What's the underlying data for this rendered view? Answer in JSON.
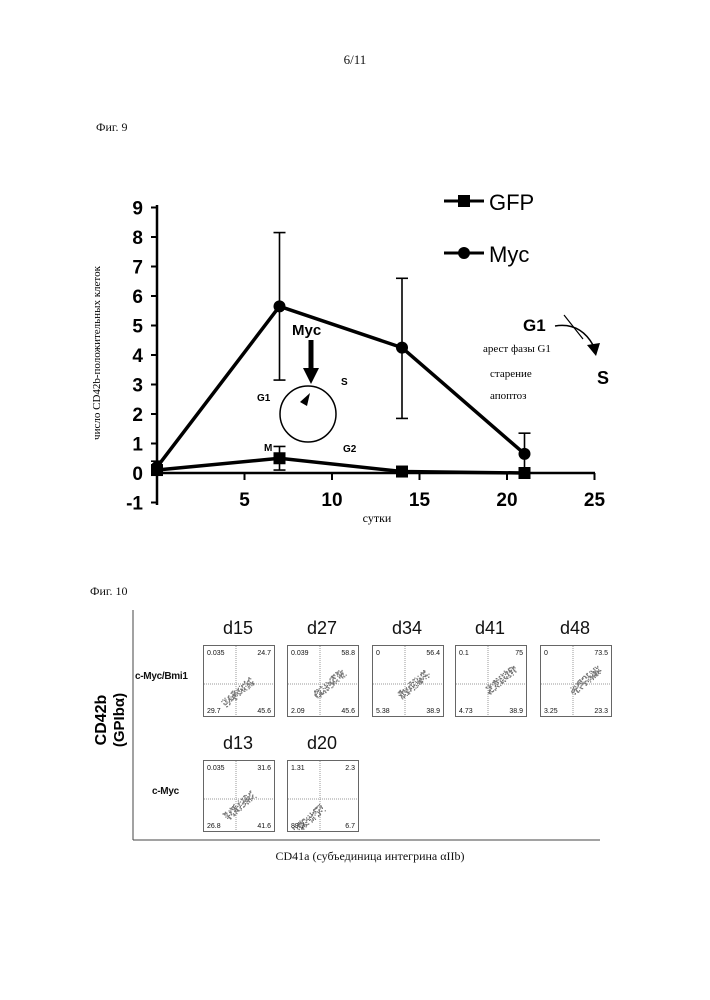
{
  "page_number": "6/11",
  "fig9": {
    "label": "Фиг. 9",
    "ylabel": "число CD42b-положительных клеток",
    "xlabel": "сутки",
    "y_ticks": [
      "9",
      "8",
      "7",
      "6",
      "5",
      "4",
      "3",
      "2",
      "1",
      "0",
      "-1"
    ],
    "x_ticks": [
      "5",
      "10",
      "15",
      "20",
      "25"
    ],
    "legend": {
      "gfp": "GFP",
      "myc": "Myc"
    },
    "cycle": {
      "myc": "Myc",
      "g1": "G1",
      "s": "S",
      "m": "M",
      "g2": "G2"
    },
    "inset": {
      "g1": "G1",
      "s": "S",
      "lines": [
        "арест фазы G1",
        "старение",
        "апоптоз"
      ]
    }
  },
  "chart_data": {
    "type": "line",
    "title": "",
    "xlabel": "сутки",
    "ylabel": "число CD42b-положительных клеток",
    "xlim": [
      0,
      25
    ],
    "ylim": [
      -1,
      9
    ],
    "grid": false,
    "legend_position": "top-right",
    "series": [
      {
        "name": "GFP",
        "marker": "square",
        "x": [
          0,
          7,
          14,
          21
        ],
        "y": [
          0.1,
          0.5,
          0.05,
          0.0
        ],
        "err_low": [
          0.1,
          0.4,
          0.05,
          0.0
        ],
        "err_high": [
          0.1,
          0.4,
          0.05,
          0.0
        ]
      },
      {
        "name": "Myc",
        "marker": "circle",
        "x": [
          0,
          7,
          14,
          21
        ],
        "y": [
          0.2,
          5.65,
          4.25,
          0.65
        ],
        "err_low": [
          0.2,
          2.5,
          2.4,
          0.65
        ],
        "err_high": [
          0.2,
          2.5,
          2.35,
          0.7
        ]
      }
    ]
  },
  "fig10": {
    "label": "Фиг. 10",
    "ylabel_line1": "CD42b",
    "ylabel_line2": "(GPIbα)",
    "xlabel": "CD41a (субъединица интегрина αIIb)",
    "row1_label": "c-Myc/Bmi1",
    "row2_label": "c-Myc",
    "row1": [
      {
        "day": "d15",
        "ul": "0.035",
        "ur": "24.7",
        "ll": "29.7",
        "lr": "45.6"
      },
      {
        "day": "d27",
        "ul": "0.039",
        "ur": "58.8",
        "ll": "2.09",
        "lr": "45.6"
      },
      {
        "day": "d34",
        "ul": "0",
        "ur": "56.4",
        "ll": "5.38",
        "lr": "38.9"
      },
      {
        "day": "d41",
        "ul": "0.1",
        "ur": "75",
        "ll": "4.73",
        "lr": "38.9"
      },
      {
        "day": "d48",
        "ul": "0",
        "ur": "73.5",
        "ll": "3.25",
        "lr": "23.3"
      }
    ],
    "row2": [
      {
        "day": "d13",
        "ul": "0.035",
        "ur": "31.6",
        "ll": "26.8",
        "lr": "41.6"
      },
      {
        "day": "d20",
        "ul": "1.31",
        "ur": "2.3",
        "ll": "89.7",
        "lr": "6.7"
      }
    ]
  }
}
